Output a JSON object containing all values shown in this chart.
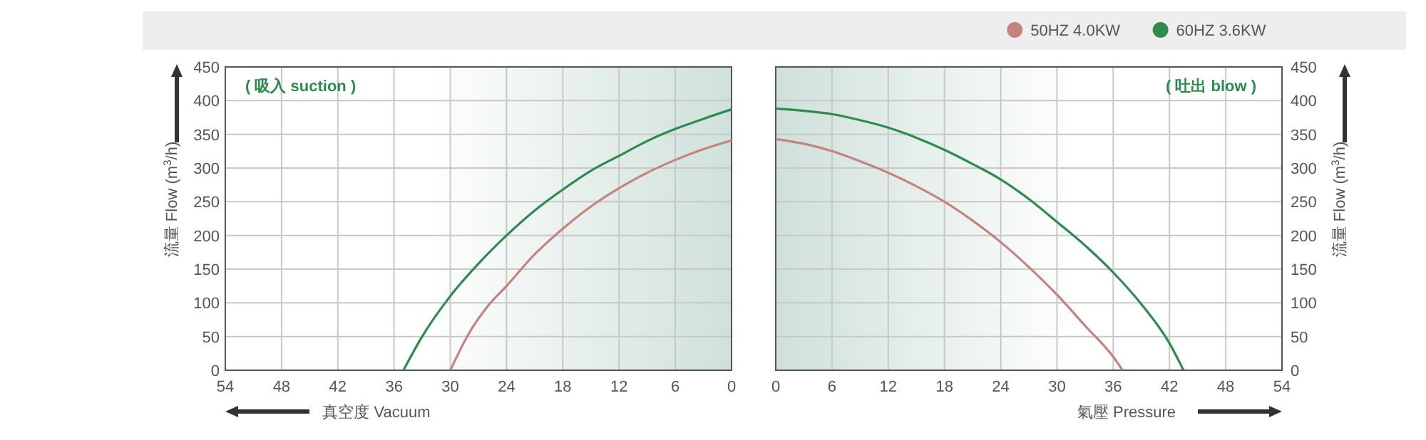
{
  "chart_data": [
    {
      "type": "line",
      "xlabel": "真空度  Vacuum",
      "ylabel": "流量 Flow (m$^{3}$/h)",
      "annotations": [
        "( 吸入 suction )"
      ],
      "xlim": [
        54,
        0
      ],
      "xticks": [
        54,
        48,
        42,
        36,
        30,
        24,
        18,
        12,
        6,
        0
      ],
      "ylim": [
        0,
        450
      ],
      "yticks": [
        0,
        50,
        100,
        150,
        200,
        250,
        300,
        350,
        400,
        450
      ],
      "grid": true,
      "legend": false,
      "marker": "none",
      "line_style": "solid",
      "series": [
        {
          "color": "#2e8b4e",
          "x": [
            35,
            33,
            30,
            27,
            24,
            21,
            18,
            15,
            12,
            9,
            6,
            3,
            0
          ],
          "values": [
            0,
            50,
            110,
            158,
            200,
            237,
            268,
            296,
            318,
            340,
            358,
            373,
            387
          ]
        },
        {
          "color": "#c4837c",
          "x": [
            30,
            28,
            26,
            24,
            21,
            18,
            15,
            12,
            9,
            6,
            3,
            0
          ],
          "values": [
            0,
            55,
            95,
            125,
            172,
            210,
            243,
            270,
            293,
            312,
            328,
            341
          ]
        }
      ]
    },
    {
      "type": "line",
      "xlabel": "氣壓  Pressure",
      "y2label": "流量 Flow (m$^{3}$/h)",
      "annotations": [
        "( 吐出 blow )"
      ],
      "xlim": [
        0,
        54
      ],
      "xticks": [
        0,
        6,
        12,
        18,
        24,
        30,
        36,
        42,
        48,
        54
      ],
      "y2lim": [
        0,
        450
      ],
      "y2ticks": [
        0,
        50,
        100,
        150,
        200,
        250,
        300,
        350,
        400,
        450
      ],
      "grid": true,
      "legend": "top right",
      "marker": "none",
      "line_style": "solid",
      "series": [
        {
          "name": "50HZ  4.0KW",
          "color": "#c4837c",
          "axis": "y2",
          "x": [
            0,
            3,
            6,
            9,
            12,
            15,
            18,
            21,
            24,
            27,
            30,
            33,
            36,
            37
          ],
          "values": [
            343,
            336,
            325,
            310,
            293,
            273,
            250,
            222,
            190,
            153,
            112,
            66,
            20,
            0
          ]
        },
        {
          "name": "60HZ  3.6KW",
          "color": "#2e8b4e",
          "axis": "y2",
          "x": [
            0,
            3,
            6,
            9,
            12,
            15,
            18,
            21,
            24,
            27,
            30,
            33,
            36,
            39,
            42,
            43.5
          ],
          "values": [
            388,
            385,
            380,
            371,
            360,
            345,
            327,
            306,
            283,
            254,
            220,
            185,
            145,
            98,
            40,
            0
          ]
        }
      ]
    }
  ]
}
